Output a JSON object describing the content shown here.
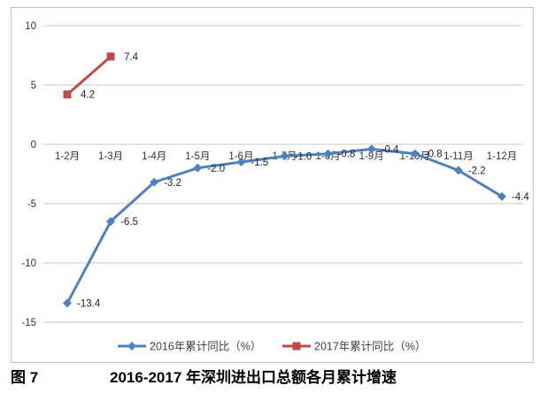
{
  "figure": {
    "caption_label": "图 7",
    "caption_text": "2016-2017 年深圳进出口总额各月累计增速"
  },
  "chart_data": {
    "type": "line",
    "categories": [
      "1-2月",
      "1-3月",
      "1-4月",
      "1-5月",
      "1-6月",
      "1-7月",
      "1-8月",
      "1-9月",
      "1-10月",
      "1-11月",
      "1-12月"
    ],
    "series": [
      {
        "name": "2016年累计同比（%）",
        "color": "#4f81bd",
        "marker": "diamond",
        "values": [
          -13.4,
          -6.5,
          -3.2,
          -2.0,
          -1.5,
          -1.0,
          -0.8,
          -0.4,
          -0.8,
          -2.2,
          -4.4
        ],
        "data_labels": [
          "-13.4",
          "-6.5",
          "-3.2",
          "-2.0",
          "-1.5",
          "-1.0",
          "-0.8",
          "-0.4",
          "-0.8",
          "-2.2",
          "-4.4"
        ]
      },
      {
        "name": "2017年累计同比（%）",
        "color": "#be4b48",
        "marker": "square",
        "values": [
          4.2,
          7.4
        ],
        "data_labels": [
          "4.2",
          "7.4"
        ]
      }
    ],
    "yticks": [
      10,
      5,
      0,
      -5,
      -10,
      -15
    ],
    "ytick_labels": [
      "10",
      "5",
      "0",
      "-5",
      "-10",
      "-15"
    ],
    "ylim": [
      -15,
      10
    ],
    "grid": true,
    "legend_position": "bottom",
    "colors": {
      "gridline": "#c6c6c6",
      "border": "#c0c0c0",
      "axis_text": "#30303f",
      "data_label_text": "#1f1f28",
      "legend_text": "#404040"
    }
  }
}
